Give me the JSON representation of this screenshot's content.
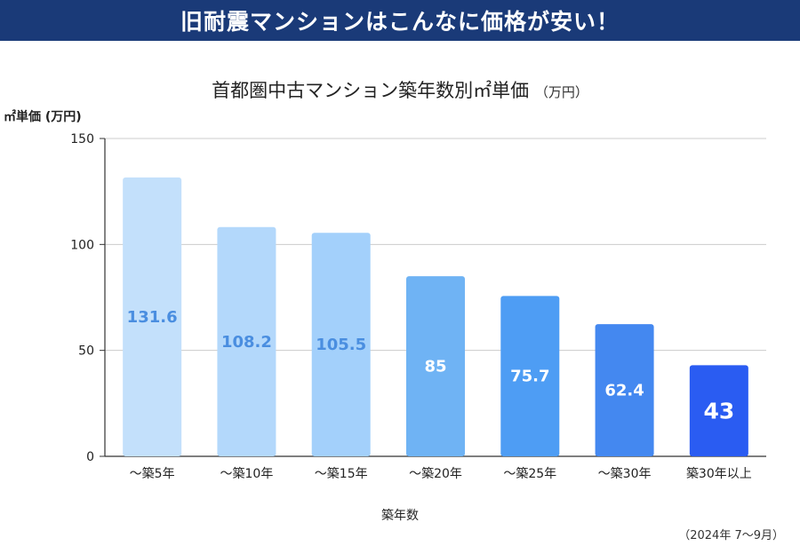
{
  "banner": {
    "title": "旧耐震マンションはこんなに価格が安い！"
  },
  "chart_data": {
    "type": "bar",
    "title": "首都圏中古マンション築年数別㎡単価",
    "title_unit": "（万円）",
    "ylabel": "㎡単価 (万円)",
    "xlabel": "築年数",
    "ylim": [
      0,
      150
    ],
    "yticks": [
      0,
      50,
      100,
      150
    ],
    "grid": true,
    "categories": [
      "～築5年",
      "～築10年",
      "～築15年",
      "～築20年",
      "～築25年",
      "～築30年",
      "築30年以上"
    ],
    "values": [
      131.6,
      108.2,
      105.5,
      85,
      75.7,
      62.4,
      43
    ],
    "value_labels": [
      "131.6",
      "108.2",
      "105.5",
      "85",
      "75.7",
      "62.4",
      "43"
    ],
    "colors": [
      "#c3e0fb",
      "#b3d8fb",
      "#a3d0fb",
      "#6fb3f4",
      "#4e9df4",
      "#4488f0",
      "#2a5cf2"
    ],
    "label_colors": [
      "#4a8ee0",
      "#4a8ee0",
      "#4a8ee0",
      "#ffffff",
      "#ffffff",
      "#ffffff",
      "#ffffff"
    ]
  },
  "footnote": "（2024年 7～9月）"
}
